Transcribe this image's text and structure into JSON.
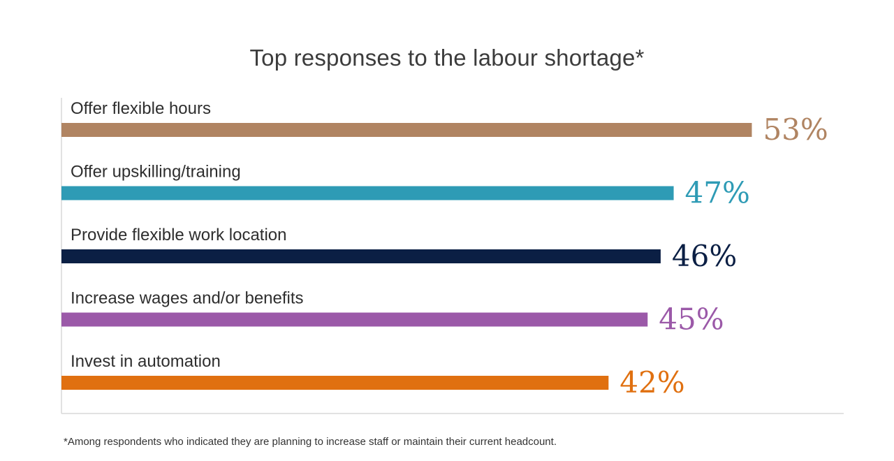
{
  "chart_data": {
    "type": "bar",
    "orientation": "horizontal",
    "title": "Top responses to the labour shortage*",
    "categories": [
      "Offer flexible hours",
      "Offer upskilling/training",
      "Provide flexible work location",
      "Increase wages and/or benefits",
      "Invest in automation"
    ],
    "values": [
      53,
      47,
      46,
      45,
      42
    ],
    "value_labels": [
      "53%",
      "47%",
      "46%",
      "45%",
      "42%"
    ],
    "unit": "%",
    "colors": [
      "#b08462",
      "#2e9bb5",
      "#0b1f44",
      "#9b59a8",
      "#e07010"
    ],
    "xlim": [
      0,
      60
    ],
    "grid": false,
    "legend": "none"
  },
  "footnote": "*Among respondents who indicated they are planning to increase staff or maintain their current headcount."
}
